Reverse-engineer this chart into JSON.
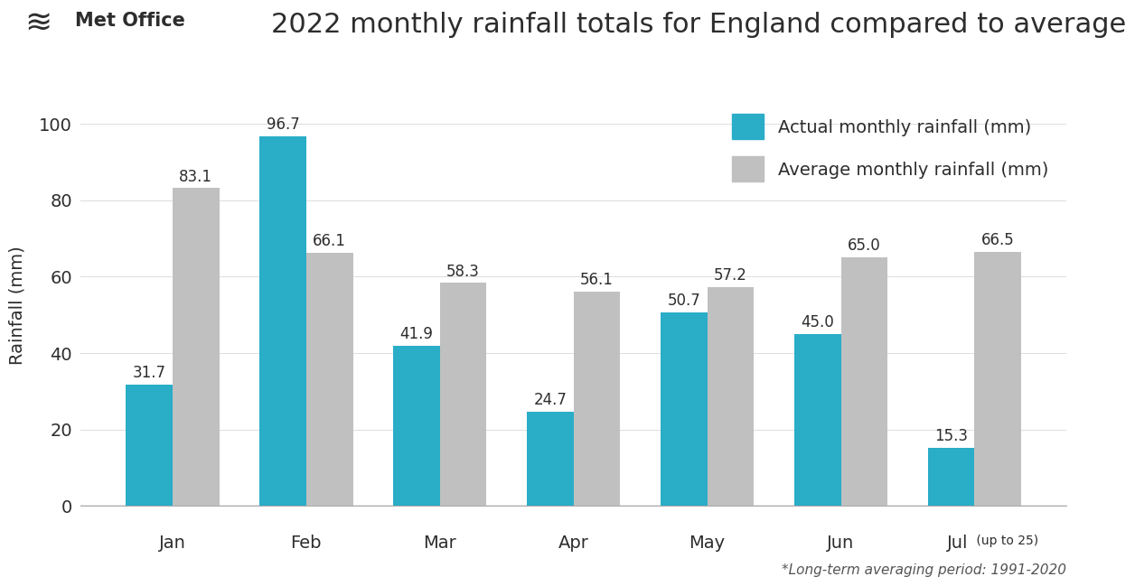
{
  "title": "2022 monthly rainfall totals for England compared to average",
  "ylabel": "Rainfall (mm)",
  "footnote": "*Long-term averaging period: 1991-2020",
  "months": [
    "Jan",
    "Feb",
    "Mar",
    "Apr",
    "May",
    "Jun",
    "Jul"
  ],
  "actual": [
    31.7,
    96.7,
    41.9,
    24.7,
    50.7,
    45.0,
    15.3
  ],
  "average": [
    83.1,
    66.1,
    58.3,
    56.1,
    57.2,
    65.0,
    66.5
  ],
  "actual_color": "#2AADC7",
  "average_color": "#C0C0C0",
  "bar_width": 0.35,
  "ylim": [
    0,
    105
  ],
  "yticks": [
    0,
    20,
    40,
    60,
    80,
    100
  ],
  "legend_actual": "Actual monthly rainfall (mm)",
  "legend_average": "Average monthly rainfall (mm)",
  "title_color": "#2d2d2d",
  "label_color": "#2d2d2d",
  "background_color": "#ffffff",
  "title_fontsize": 22,
  "label_fontsize": 14,
  "tick_fontsize": 14,
  "annotation_fontsize": 12,
  "legend_fontsize": 14,
  "footnote_fontsize": 11,
  "metoffice_fontsize": 15
}
